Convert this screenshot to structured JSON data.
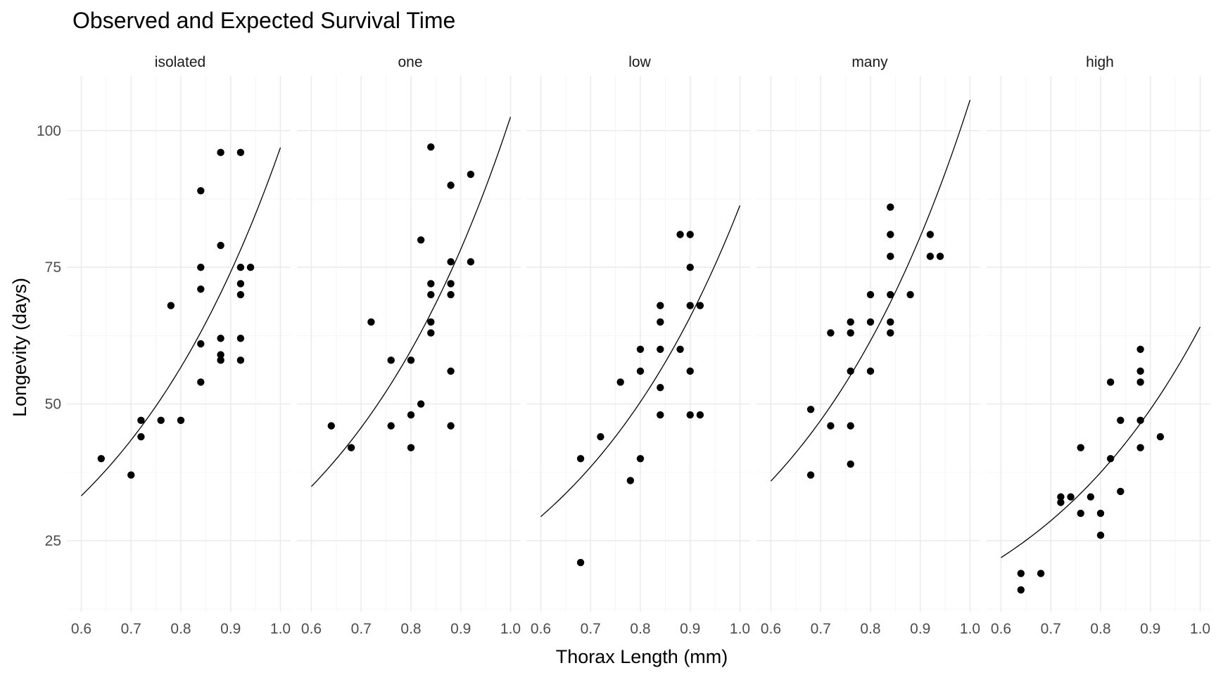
{
  "chart_data": {
    "type": "scatter",
    "title": "Observed and Expected Survival Time",
    "xlabel": "Thorax Length (mm)",
    "ylabel": "Longevity (days)",
    "xlim": [
      0.6,
      1.0
    ],
    "ylim": [
      12,
      110
    ],
    "x_ticks": [
      0.6,
      0.7,
      0.8,
      0.9,
      1.0
    ],
    "x_tick_labels": [
      "0.6",
      "0.7",
      "0.8",
      "0.9",
      "1.0"
    ],
    "y_ticks": [
      25,
      50,
      75,
      100
    ],
    "y_tick_labels": [
      "25",
      "50",
      "75",
      "100"
    ],
    "grid": true,
    "facets": [
      {
        "name": "isolated",
        "points": [
          [
            0.64,
            40
          ],
          [
            0.7,
            37
          ],
          [
            0.72,
            47
          ],
          [
            0.72,
            44
          ],
          [
            0.76,
            47
          ],
          [
            0.78,
            68
          ],
          [
            0.8,
            47
          ],
          [
            0.84,
            89
          ],
          [
            0.84,
            75
          ],
          [
            0.84,
            71
          ],
          [
            0.84,
            61
          ],
          [
            0.84,
            54
          ],
          [
            0.88,
            96
          ],
          [
            0.88,
            79
          ],
          [
            0.88,
            62
          ],
          [
            0.88,
            59
          ],
          [
            0.88,
            58
          ],
          [
            0.92,
            96
          ],
          [
            0.92,
            75
          ],
          [
            0.92,
            72
          ],
          [
            0.92,
            70
          ],
          [
            0.92,
            62
          ],
          [
            0.92,
            58
          ],
          [
            0.94,
            75
          ]
        ],
        "curve": [
          [
            0.6,
            33.2
          ],
          [
            1.0,
            96.9
          ]
        ]
      },
      {
        "name": "one",
        "points": [
          [
            0.64,
            46
          ],
          [
            0.68,
            42
          ],
          [
            0.72,
            65
          ],
          [
            0.76,
            58
          ],
          [
            0.76,
            46
          ],
          [
            0.8,
            58
          ],
          [
            0.8,
            48
          ],
          [
            0.8,
            42
          ],
          [
            0.82,
            80
          ],
          [
            0.82,
            50
          ],
          [
            0.84,
            97
          ],
          [
            0.84,
            72
          ],
          [
            0.84,
            70
          ],
          [
            0.84,
            65
          ],
          [
            0.84,
            63
          ],
          [
            0.88,
            90
          ],
          [
            0.88,
            76
          ],
          [
            0.88,
            72
          ],
          [
            0.88,
            70
          ],
          [
            0.88,
            56
          ],
          [
            0.88,
            46
          ],
          [
            0.92,
            92
          ],
          [
            0.92,
            76
          ]
        ],
        "curve": [
          [
            0.6,
            34.9
          ],
          [
            1.0,
            102.5
          ]
        ]
      },
      {
        "name": "low",
        "points": [
          [
            0.68,
            40
          ],
          [
            0.68,
            21
          ],
          [
            0.72,
            44
          ],
          [
            0.76,
            54
          ],
          [
            0.78,
            36
          ],
          [
            0.8,
            60
          ],
          [
            0.8,
            56
          ],
          [
            0.8,
            40
          ],
          [
            0.84,
            68
          ],
          [
            0.84,
            65
          ],
          [
            0.84,
            60
          ],
          [
            0.84,
            53
          ],
          [
            0.84,
            48
          ],
          [
            0.88,
            81
          ],
          [
            0.88,
            60
          ],
          [
            0.9,
            81
          ],
          [
            0.9,
            75
          ],
          [
            0.9,
            68
          ],
          [
            0.9,
            56
          ],
          [
            0.9,
            48
          ],
          [
            0.92,
            68
          ],
          [
            0.92,
            48
          ]
        ],
        "curve": [
          [
            0.6,
            29.4
          ],
          [
            1.0,
            86.3
          ]
        ]
      },
      {
        "name": "many",
        "points": [
          [
            0.68,
            49
          ],
          [
            0.68,
            37
          ],
          [
            0.72,
            63
          ],
          [
            0.72,
            46
          ],
          [
            0.76,
            65
          ],
          [
            0.76,
            63
          ],
          [
            0.76,
            56
          ],
          [
            0.76,
            46
          ],
          [
            0.76,
            39
          ],
          [
            0.8,
            70
          ],
          [
            0.8,
            65
          ],
          [
            0.8,
            56
          ],
          [
            0.84,
            86
          ],
          [
            0.84,
            81
          ],
          [
            0.84,
            77
          ],
          [
            0.84,
            70
          ],
          [
            0.84,
            65
          ],
          [
            0.84,
            63
          ],
          [
            0.88,
            70
          ],
          [
            0.92,
            81
          ],
          [
            0.92,
            77
          ],
          [
            0.94,
            77
          ]
        ],
        "curve": [
          [
            0.6,
            35.9
          ],
          [
            1.0,
            105.6
          ]
        ]
      },
      {
        "name": "high",
        "points": [
          [
            0.64,
            19
          ],
          [
            0.64,
            16
          ],
          [
            0.68,
            19
          ],
          [
            0.72,
            33
          ],
          [
            0.72,
            32
          ],
          [
            0.74,
            33
          ],
          [
            0.76,
            42
          ],
          [
            0.76,
            30
          ],
          [
            0.78,
            33
          ],
          [
            0.8,
            30
          ],
          [
            0.8,
            26
          ],
          [
            0.82,
            54
          ],
          [
            0.82,
            40
          ],
          [
            0.84,
            47
          ],
          [
            0.84,
            34
          ],
          [
            0.88,
            60
          ],
          [
            0.88,
            56
          ],
          [
            0.88,
            54
          ],
          [
            0.88,
            47
          ],
          [
            0.88,
            42
          ],
          [
            0.92,
            44
          ]
        ],
        "curve": [
          [
            0.6,
            21.9
          ],
          [
            1.0,
            64.1
          ]
        ]
      }
    ]
  }
}
